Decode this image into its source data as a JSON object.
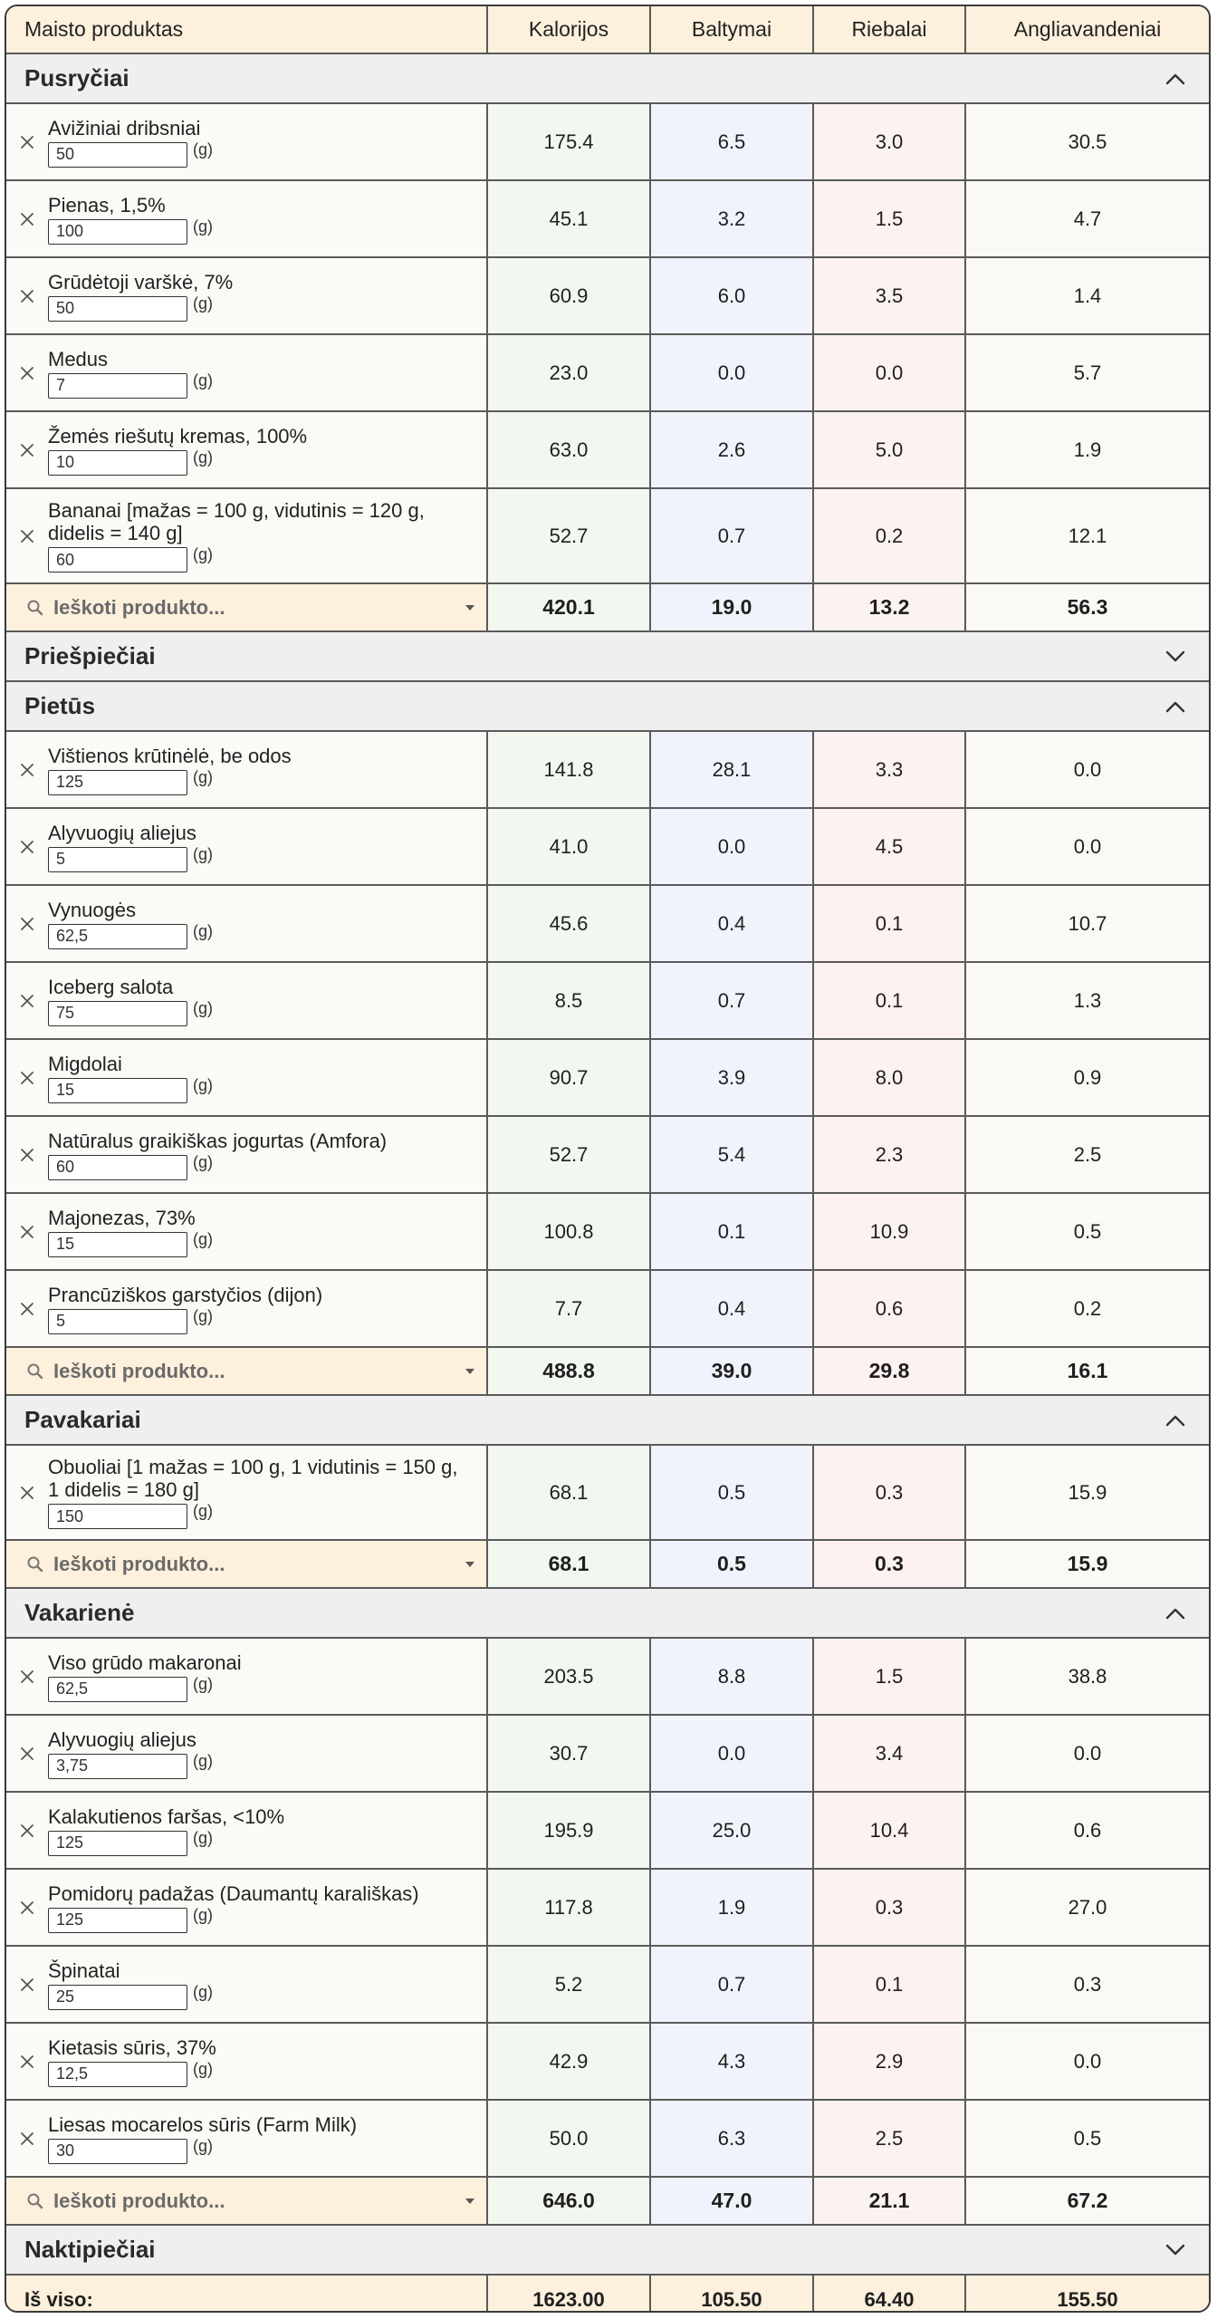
{
  "header": {
    "product": "Maisto produktas",
    "calories": "Kalorijos",
    "protein": "Baltymai",
    "fat": "Riebalai",
    "carbs": "Angliavandeniai"
  },
  "search_placeholder": "Ieškoti produkto...",
  "unit": "(g)",
  "meals": [
    {
      "name": "Pusryčiai",
      "expanded": true,
      "items": [
        {
          "name": "Avižiniai dribsniai",
          "qty": "50",
          "cal": "175.4",
          "pro": "6.5",
          "fat": "3.0",
          "carb": "30.5"
        },
        {
          "name": "Pienas, 1,5%",
          "qty": "100",
          "cal": "45.1",
          "pro": "3.2",
          "fat": "1.5",
          "carb": "4.7"
        },
        {
          "name": "Grūdėtoji varškė, 7%",
          "qty": "50",
          "cal": "60.9",
          "pro": "6.0",
          "fat": "3.5",
          "carb": "1.4"
        },
        {
          "name": "Medus",
          "qty": "7",
          "cal": "23.0",
          "pro": "0.0",
          "fat": "0.0",
          "carb": "5.7"
        },
        {
          "name": "Žemės riešutų kremas, 100%",
          "qty": "10",
          "cal": "63.0",
          "pro": "2.6",
          "fat": "5.0",
          "carb": "1.9"
        },
        {
          "name": "Bananai [mažas = 100 g, vidutinis = 120 g, didelis = 140 g]",
          "qty": "60",
          "cal": "52.7",
          "pro": "0.7",
          "fat": "0.2",
          "carb": "12.1"
        }
      ],
      "total": {
        "cal": "420.1",
        "pro": "19.0",
        "fat": "13.2",
        "carb": "56.3"
      }
    },
    {
      "name": "Priešpiečiai",
      "expanded": false,
      "items": []
    },
    {
      "name": "Pietūs",
      "expanded": true,
      "items": [
        {
          "name": "Vištienos krūtinėlė, be odos",
          "qty": "125",
          "cal": "141.8",
          "pro": "28.1",
          "fat": "3.3",
          "carb": "0.0"
        },
        {
          "name": "Alyvuogių aliejus",
          "qty": "5",
          "cal": "41.0",
          "pro": "0.0",
          "fat": "4.5",
          "carb": "0.0"
        },
        {
          "name": "Vynuogės",
          "qty": "62,5",
          "cal": "45.6",
          "pro": "0.4",
          "fat": "0.1",
          "carb": "10.7"
        },
        {
          "name": "Iceberg salota",
          "qty": "75",
          "cal": "8.5",
          "pro": "0.7",
          "fat": "0.1",
          "carb": "1.3"
        },
        {
          "name": "Migdolai",
          "qty": "15",
          "cal": "90.7",
          "pro": "3.9",
          "fat": "8.0",
          "carb": "0.9"
        },
        {
          "name": "Natūralus graikiškas jogurtas (Amfora)",
          "qty": "60",
          "cal": "52.7",
          "pro": "5.4",
          "fat": "2.3",
          "carb": "2.5"
        },
        {
          "name": "Majonezas, 73%",
          "qty": "15",
          "cal": "100.8",
          "pro": "0.1",
          "fat": "10.9",
          "carb": "0.5"
        },
        {
          "name": "Prancūziškos garstyčios (dijon)",
          "qty": "5",
          "cal": "7.7",
          "pro": "0.4",
          "fat": "0.6",
          "carb": "0.2"
        }
      ],
      "total": {
        "cal": "488.8",
        "pro": "39.0",
        "fat": "29.8",
        "carb": "16.1"
      }
    },
    {
      "name": "Pavakariai",
      "expanded": true,
      "items": [
        {
          "name": "Obuoliai [1 mažas = 100 g, 1 vidutinis = 150 g, 1 didelis = 180 g]",
          "qty": "150",
          "cal": "68.1",
          "pro": "0.5",
          "fat": "0.3",
          "carb": "15.9"
        }
      ],
      "total": {
        "cal": "68.1",
        "pro": "0.5",
        "fat": "0.3",
        "carb": "15.9"
      }
    },
    {
      "name": "Vakarienė",
      "expanded": true,
      "items": [
        {
          "name": "Viso grūdo makaronai",
          "qty": "62,5",
          "cal": "203.5",
          "pro": "8.8",
          "fat": "1.5",
          "carb": "38.8"
        },
        {
          "name": "Alyvuogių aliejus",
          "qty": "3,75",
          "cal": "30.7",
          "pro": "0.0",
          "fat": "3.4",
          "carb": "0.0"
        },
        {
          "name": "Kalakutienos faršas, <10%",
          "qty": "125",
          "cal": "195.9",
          "pro": "25.0",
          "fat": "10.4",
          "carb": "0.6"
        },
        {
          "name": "Pomidorų padažas (Daumantų karališkas)",
          "qty": "125",
          "cal": "117.8",
          "pro": "1.9",
          "fat": "0.3",
          "carb": "27.0"
        },
        {
          "name": "Špinatai",
          "qty": "25",
          "cal": "5.2",
          "pro": "0.7",
          "fat": "0.1",
          "carb": "0.3"
        },
        {
          "name": "Kietasis sūris, 37%",
          "qty": "12,5",
          "cal": "42.9",
          "pro": "4.3",
          "fat": "2.9",
          "carb": "0.0"
        },
        {
          "name": "Liesas mocarelos sūris (Farm Milk)",
          "qty": "30",
          "cal": "50.0",
          "pro": "6.3",
          "fat": "2.5",
          "carb": "0.5"
        }
      ],
      "total": {
        "cal": "646.0",
        "pro": "47.0",
        "fat": "21.1",
        "carb": "67.2"
      }
    },
    {
      "name": "Naktipiečiai",
      "expanded": false,
      "items": []
    }
  ],
  "grand_total": {
    "label": "Iš viso:",
    "cal": "1623.00",
    "pro": "105.50",
    "fat": "64.40",
    "carb": "155.50"
  },
  "icons": {
    "remove": "close-icon",
    "search": "search-icon",
    "dropdown": "caret-down-icon",
    "expanded": "chevron-up-icon",
    "collapsed": "chevron-down-icon"
  },
  "colors": {
    "header_bg": "#fdf0dc",
    "section_bg": "#efefef",
    "calories_bg": "#f2f8f0",
    "protein_bg": "#f0f3fb",
    "fat_bg": "#fbf2f1"
  }
}
